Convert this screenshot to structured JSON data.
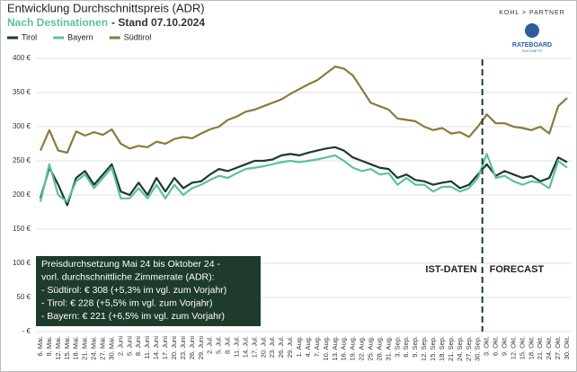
{
  "chart_data": {
    "type": "line",
    "title": "Entwicklung Durchschnittspreis (ADR)",
    "subtitle": "Nach Destinationen",
    "subtitle_suffix": "- Stand 07.10.2024",
    "logo_text": "KOHL > PARTNER",
    "logo2_text": "RATEBOARD",
    "logo2_sub": "ZUCCHETTI",
    "categories": [
      "6. Mai.",
      "9. Mai.",
      "12. Mai.",
      "15. Mai.",
      "18. Mai.",
      "21. Mai.",
      "24. Mai.",
      "27. Mai.",
      "30. Mai.",
      "2. Juni",
      "5. Juni",
      "8. Juni",
      "11. Juni",
      "14. Juni",
      "17. Juni",
      "20. Juni",
      "23. Juni",
      "26. Juni",
      "29. Juni",
      "2. Jul.",
      "5. Jul.",
      "8. Jul.",
      "11. Jul.",
      "14. Jul.",
      "17. Jul.",
      "20. Jul.",
      "23. Jul.",
      "26. Jul.",
      "29. Jul.",
      "1. Aug.",
      "4. Aug.",
      "7. Aug.",
      "10. Aug.",
      "13. Aug.",
      "16. Aug.",
      "19. Aug.",
      "22. Aug.",
      "25. Aug.",
      "28. Aug.",
      "31. Aug.",
      "3. Sep.",
      "6. Sep.",
      "9. Sep.",
      "12. Sep.",
      "15. Sep.",
      "18. Sep.",
      "21. Sep.",
      "24. Sep.",
      "27. Sep.",
      "30. Sep.",
      "3. Okt.",
      "6. Okt.",
      "9. Okt.",
      "12. Okt.",
      "15. Okt.",
      "18. Okt.",
      "21. Okt.",
      "24. Okt.",
      "27. Okt.",
      "30. Okt."
    ],
    "series": [
      {
        "name": "Tirol",
        "color": "#1d3b2b",
        "values": [
          195,
          240,
          215,
          185,
          225,
          235,
          215,
          230,
          245,
          205,
          200,
          218,
          200,
          225,
          205,
          225,
          210,
          218,
          220,
          230,
          238,
          235,
          240,
          245,
          250,
          250,
          252,
          258,
          260,
          258,
          262,
          265,
          268,
          270,
          265,
          255,
          250,
          245,
          240,
          238,
          225,
          230,
          222,
          220,
          215,
          218,
          220,
          210,
          215,
          230,
          245,
          228,
          235,
          230,
          225,
          228,
          220,
          225,
          255,
          248
        ]
      },
      {
        "name": "Bayern",
        "color": "#5cc29f",
        "values": [
          190,
          245,
          200,
          190,
          220,
          230,
          210,
          225,
          240,
          195,
          195,
          210,
          195,
          215,
          195,
          215,
          200,
          210,
          215,
          222,
          228,
          225,
          232,
          238,
          240,
          242,
          245,
          248,
          250,
          248,
          250,
          252,
          255,
          258,
          250,
          240,
          235,
          238,
          230,
          232,
          215,
          225,
          215,
          215,
          205,
          212,
          212,
          205,
          210,
          225,
          260,
          225,
          228,
          220,
          215,
          220,
          218,
          210,
          250,
          240
        ]
      },
      {
        "name": "Südtirol",
        "color": "#8b7a3c",
        "values": [
          265,
          295,
          265,
          262,
          293,
          287,
          292,
          288,
          296,
          275,
          268,
          272,
          270,
          278,
          275,
          282,
          285,
          283,
          290,
          296,
          300,
          310,
          315,
          322,
          325,
          330,
          335,
          340,
          348,
          355,
          362,
          368,
          378,
          388,
          385,
          375,
          355,
          335,
          330,
          325,
          312,
          310,
          308,
          300,
          295,
          298,
          290,
          292,
          285,
          300,
          318,
          305,
          305,
          300,
          298,
          295,
          300,
          290,
          330,
          342
        ]
      }
    ],
    "ylim": [
      0,
      400
    ],
    "yticks": [
      {
        "value": 0,
        "label": "- €"
      },
      {
        "value": 50,
        "label": "50 €"
      },
      {
        "value": 100,
        "label": "100 €"
      },
      {
        "value": 150,
        "label": "150 €"
      },
      {
        "value": 200,
        "label": "200 €"
      },
      {
        "value": 250,
        "label": "250 €"
      },
      {
        "value": 300,
        "label": "300 €"
      },
      {
        "value": 350,
        "label": "350 €"
      },
      {
        "value": 400,
        "label": "400 €"
      }
    ],
    "grid": true,
    "annotations": [
      "IST-DATEN",
      "FORECAST"
    ],
    "info_box": [
      "Preisdurchsetzung Mai 24 bis Oktober 24 -",
      "vorl. durchschnittliche Zimmerrate (ADR):",
      "- Südtirol:  € 308 (+5,3% im vgl. zum Vorjahr)",
      "- Tirol:  € 228  (+5,5% im vgl. zum Vorjahr)",
      "- Bayern: € 221  (+6,5% im vgl. zum Vorjahr)"
    ]
  }
}
